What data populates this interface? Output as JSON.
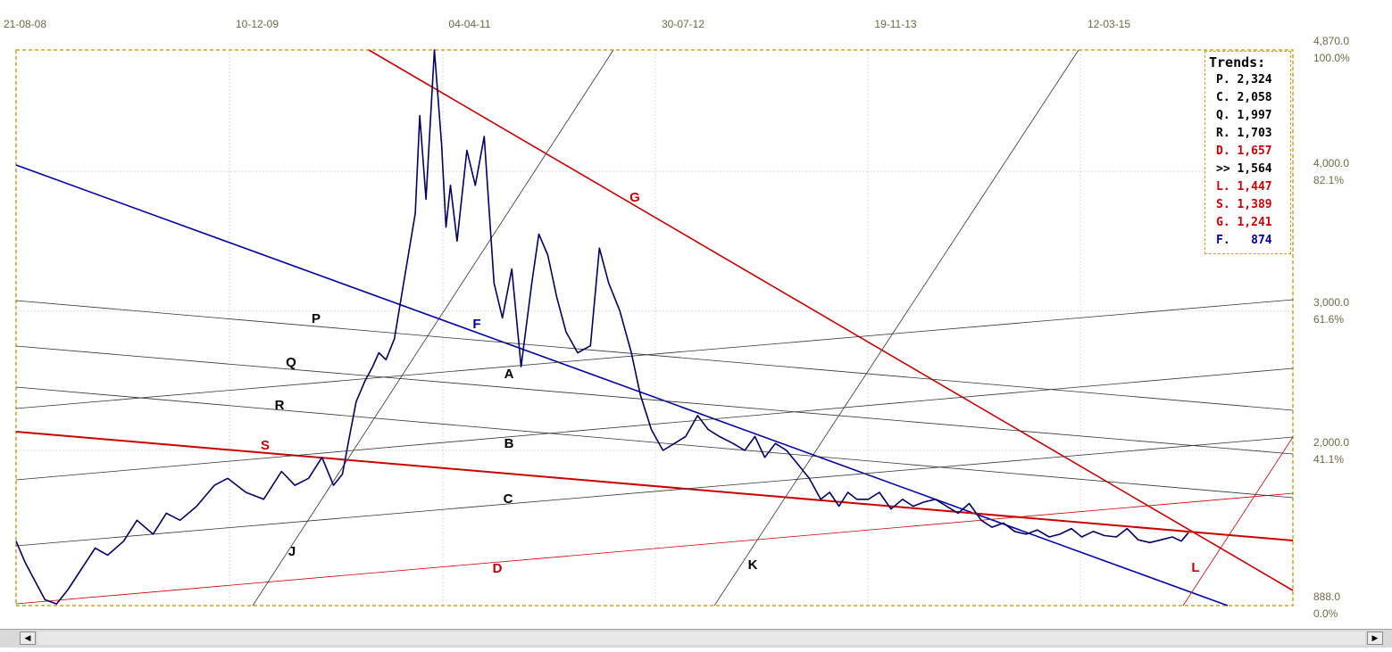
{
  "chart_data": {
    "type": "line",
    "title": "",
    "xlabel": "",
    "ylabel": "",
    "x_tick_labels": [
      "21-08-08",
      "10-12-09",
      "04-04-11",
      "30-07-12",
      "19-11-13",
      "12-03-15"
    ],
    "y_tick_labels": [
      {
        "value": "4,870.0",
        "pct": "100.0%"
      },
      {
        "value": "4,000.0",
        "pct": "82.1%"
      },
      {
        "value": "3,000.0",
        "pct": "61.6%"
      },
      {
        "value": "2,000.0",
        "pct": "41.1%"
      },
      {
        "value": "888.0",
        "pct": "0.0%"
      }
    ],
    "ylim": [
      888,
      4870
    ],
    "grid": true,
    "series": [
      {
        "color": "#000066",
        "x": [
          "2008-08-21",
          "2008-09-10",
          "2008-10-05",
          "2008-10-25",
          "2008-11-20",
          "2008-12-15",
          "2009-01-15",
          "2009-02-15",
          "2009-03-15",
          "2009-04-20",
          "2009-05-20",
          "2009-06-25",
          "2009-07-25",
          "2009-08-25",
          "2009-10-01",
          "2009-11-10",
          "2009-12-10",
          "2010-01-20",
          "2010-03-01",
          "2010-04-10",
          "2010-05-10",
          "2010-06-10",
          "2010-07-10",
          "2010-08-05",
          "2010-08-25",
          "2010-09-10",
          "2010-09-25",
          "2010-10-15",
          "2010-11-01",
          "2010-11-15",
          "2010-12-01",
          "2010-12-20",
          "2011-01-15",
          "2011-02-05",
          "2011-02-15",
          "2011-03-01",
          "2011-03-20",
          "2011-04-05",
          "2011-04-15",
          "2011-04-25",
          "2011-05-10",
          "2011-06-01",
          "2011-06-20",
          "2011-07-10",
          "2011-08-01",
          "2011-08-20",
          "2011-09-10",
          "2011-10-01",
          "2011-10-25",
          "2011-11-10",
          "2011-11-30",
          "2011-12-20",
          "2012-01-10",
          "2012-02-05",
          "2012-03-05",
          "2012-03-25",
          "2012-04-15",
          "2012-05-10",
          "2012-06-05",
          "2012-06-25",
          "2012-07-20",
          "2012-08-15",
          "2012-09-10",
          "2012-10-05",
          "2012-11-01",
          "2012-11-25",
          "2012-12-20",
          "2013-01-20",
          "2013-02-15",
          "2013-03-10",
          "2013-04-01",
          "2013-04-25",
          "2013-05-20",
          "2013-06-15",
          "2013-07-10",
          "2013-08-05",
          "2013-08-25",
          "2013-09-15",
          "2013-10-05",
          "2013-10-25",
          "2013-11-20",
          "2013-12-15",
          "2014-01-10",
          "2014-02-05",
          "2014-03-01",
          "2014-03-25",
          "2014-04-20",
          "2014-05-15",
          "2014-06-10",
          "2014-07-05",
          "2014-08-01",
          "2014-08-25",
          "2014-09-20",
          "2014-10-15",
          "2014-11-10",
          "2014-12-05",
          "2015-01-01",
          "2015-01-25",
          "2015-02-20",
          "2015-03-15",
          "2015-04-10",
          "2015-05-05",
          "2015-06-01",
          "2015-06-25",
          "2015-07-20",
          "2015-08-15",
          "2015-09-10",
          "2015-10-05",
          "2015-10-25",
          "2015-11-10"
        ],
        "y": [
          1350,
          1200,
          1050,
          930,
          900,
          1000,
          1150,
          1300,
          1250,
          1350,
          1500,
          1400,
          1550,
          1500,
          1600,
          1750,
          1800,
          1700,
          1650,
          1850,
          1750,
          1800,
          1950,
          1750,
          1830,
          2100,
          2350,
          2500,
          2600,
          2700,
          2650,
          2800,
          3300,
          3700,
          4400,
          3800,
          4870,
          4200,
          3600,
          3900,
          3500,
          4150,
          3900,
          4250,
          3200,
          2950,
          3300,
          2600,
          3200,
          3550,
          3400,
          3100,
          2850,
          2700,
          2750,
          3450,
          3200,
          3000,
          2700,
          2400,
          2150,
          2000,
          2050,
          2100,
          2250,
          2150,
          2100,
          2050,
          2000,
          2100,
          1950,
          2050,
          2000,
          1900,
          1800,
          1650,
          1700,
          1600,
          1700,
          1650,
          1650,
          1700,
          1580,
          1650,
          1600,
          1630,
          1650,
          1600,
          1550,
          1620,
          1500,
          1450,
          1480,
          1420,
          1400,
          1430,
          1380,
          1400,
          1440,
          1380,
          1420,
          1390,
          1380,
          1440,
          1360,
          1340,
          1360,
          1380,
          1350,
          1410
        ]
      }
    ],
    "annotations": [
      "G",
      "F",
      "P",
      "Q",
      "R",
      "S",
      "A",
      "B",
      "C",
      "D",
      "J",
      "K",
      "L"
    ],
    "legend": {
      "placement": "top-right",
      "title": "Trends:",
      "entries": [
        {
          "key": "P.",
          "value": "2,324",
          "color": "#000000"
        },
        {
          "key": "C.",
          "value": "2,058",
          "color": "#000000"
        },
        {
          "key": "Q.",
          "value": "1,997",
          "color": "#000000"
        },
        {
          "key": "R.",
          "value": "1,703",
          "color": "#000000"
        },
        {
          "key": "D.",
          "value": "1,657",
          "color": "#cc0000"
        },
        {
          "key": ">>",
          "value": "1,564",
          "color": "#000000"
        },
        {
          "key": "L.",
          "value": "1,447",
          "color": "#cc0000"
        },
        {
          "key": "S.",
          "value": "1,389",
          "color": "#cc0000"
        },
        {
          "key": "G.",
          "value": "1,241",
          "color": "#cc0000"
        },
        {
          "key": "F.",
          "value": "874",
          "color": "#0000aa"
        }
      ]
    }
  },
  "scrollbar": {
    "left_arrow": "◀",
    "right_arrow": "▶"
  }
}
